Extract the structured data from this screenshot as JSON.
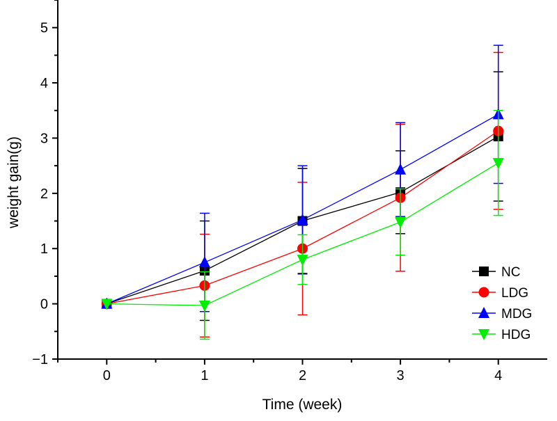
{
  "chart_data": {
    "type": "line",
    "title": "",
    "xlabel": "Time (week)",
    "ylabel": "weight gain(g)",
    "x": [
      0,
      1,
      2,
      3,
      4
    ],
    "xlim": [
      -0.5,
      4.5
    ],
    "ylim": [
      -1,
      5.5
    ],
    "xticks": [
      "0",
      "1",
      "2",
      "3",
      "4"
    ],
    "yticks": [
      "−1",
      "0",
      "1",
      "2",
      "3",
      "4",
      "5"
    ],
    "ytick_values": [
      -1,
      0,
      1,
      2,
      3,
      4,
      5
    ],
    "grid": false,
    "legend_position": "bottom-right",
    "series": [
      {
        "name": "NC",
        "color": "#000000",
        "marker": "square",
        "values": [
          0,
          0.6,
          1.5,
          2.02,
          3.03
        ],
        "errors": [
          0,
          0.9,
          0.95,
          0.75,
          1.17
        ]
      },
      {
        "name": "LDG",
        "color": "#ff0000",
        "marker": "circle",
        "values": [
          0,
          0.33,
          1.0,
          1.92,
          3.13
        ],
        "errors": [
          0,
          0.93,
          1.2,
          1.33,
          1.42
        ]
      },
      {
        "name": "MDG",
        "color": "#0000ff",
        "marker": "triangle-up",
        "values": [
          0,
          0.75,
          1.52,
          2.43,
          3.43
        ],
        "errors": [
          0,
          0.89,
          0.98,
          0.85,
          1.25
        ]
      },
      {
        "name": "HDG",
        "color": "#00ee00",
        "marker": "triangle-down",
        "values": [
          0,
          -0.03,
          0.8,
          1.48,
          2.55
        ],
        "errors": [
          0,
          0.61,
          0.45,
          0.6,
          0.95
        ]
      }
    ]
  }
}
